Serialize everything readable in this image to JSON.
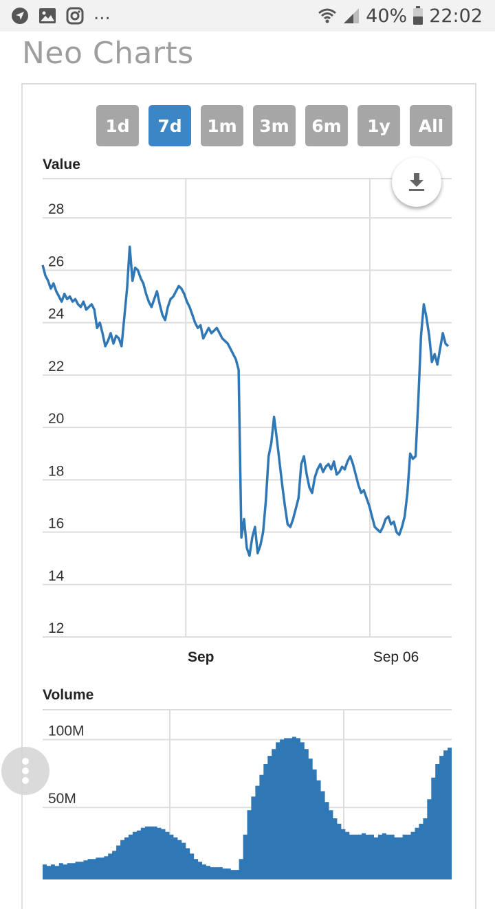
{
  "status_bar": {
    "notification_icons": [
      "navigation-icon",
      "gallery-icon",
      "instagram-icon"
    ],
    "more": "...",
    "battery": "40%",
    "time": "22:02"
  },
  "app": {
    "title": "Neo Charts"
  },
  "range_buttons": [
    {
      "label": "1d",
      "active": false
    },
    {
      "label": "7d",
      "active": true
    },
    {
      "label": "1m",
      "active": false
    },
    {
      "label": "3m",
      "active": false
    },
    {
      "label": "6m",
      "active": false
    },
    {
      "label": "1y",
      "active": false
    },
    {
      "label": "All",
      "active": false
    }
  ],
  "colors": {
    "accent": "#3d86c6",
    "button": "#a6a6a6",
    "line": "#2f77b5",
    "grid": "#dddddd"
  },
  "chart_data": [
    {
      "type": "line",
      "title": "Value",
      "ylim": [
        12,
        29.5
      ],
      "yticks": [
        "12",
        "14",
        "16",
        "18",
        "20",
        "22",
        "24",
        "26",
        "28"
      ],
      "xlim": [
        0,
        160
      ],
      "xticks": [
        {
          "label": "Sep",
          "x": 56,
          "bold": true
        },
        {
          "label": "Sep 06",
          "x": 128,
          "bold": false
        }
      ],
      "grid": true,
      "values": [
        26.2,
        25.8,
        25.6,
        25.3,
        25.5,
        25.2,
        25.0,
        24.8,
        25.1,
        24.9,
        25.0,
        24.8,
        24.9,
        24.7,
        24.6,
        24.8,
        24.5,
        24.6,
        24.7,
        24.5,
        23.8,
        24.0,
        23.6,
        23.1,
        23.3,
        23.6,
        23.2,
        23.5,
        23.4,
        23.1,
        24.2,
        25.3,
        26.9,
        25.6,
        26.1,
        26.0,
        25.7,
        25.5,
        25.1,
        24.8,
        24.6,
        24.9,
        25.2,
        24.7,
        24.3,
        24.1,
        24.6,
        24.9,
        25.0,
        25.2,
        25.4,
        25.3,
        25.1,
        24.8,
        24.6,
        24.3,
        24.0,
        23.8,
        23.9,
        23.4,
        23.6,
        23.8,
        23.6,
        23.7,
        23.8,
        23.6,
        23.4,
        23.3,
        23.2,
        23.0,
        22.8,
        22.6,
        22.2,
        15.8,
        16.5,
        15.4,
        15.1,
        15.8,
        16.2,
        15.2,
        15.5,
        16.0,
        17.2,
        18.9,
        19.4,
        20.4,
        19.6,
        18.7,
        17.8,
        17.0,
        16.3,
        16.2,
        16.5,
        16.9,
        17.3,
        18.6,
        18.9,
        18.2,
        17.7,
        17.5,
        18.1,
        18.4,
        18.6,
        18.3,
        18.5,
        18.6,
        18.4,
        18.7,
        18.2,
        18.3,
        18.5,
        18.4,
        18.7,
        18.9,
        18.6,
        18.2,
        17.8,
        17.5,
        17.6,
        17.3,
        17.0,
        16.6,
        16.2,
        16.1,
        16.0,
        16.2,
        16.5,
        16.6,
        16.3,
        16.4,
        16.0,
        15.9,
        16.2,
        16.6,
        17.5,
        19.0,
        18.8,
        18.9,
        21.0,
        23.5,
        24.7,
        24.2,
        23.5,
        22.5,
        22.8,
        22.4,
        23.0,
        23.6,
        23.2,
        23.1
      ],
      "min_value": 14.0,
      "max_value": 27.4
    },
    {
      "type": "area",
      "title": "Volume",
      "ylim": [
        0,
        125
      ],
      "yticks": [
        "50M",
        "100M"
      ],
      "grid": true,
      "values": [
        8,
        7,
        8,
        7,
        9,
        8,
        9,
        9,
        10,
        10,
        11,
        12,
        12,
        13,
        13,
        14,
        16,
        18,
        22,
        26,
        28,
        30,
        32,
        33,
        35,
        36,
        36,
        36,
        35,
        34,
        32,
        30,
        28,
        26,
        24,
        20,
        16,
        12,
        10,
        8,
        7,
        6,
        6,
        6,
        5,
        5,
        4,
        4,
        12,
        30,
        48,
        58,
        66,
        74,
        82,
        88,
        93,
        98,
        100,
        101,
        101,
        102,
        101,
        98,
        93,
        86,
        78,
        70,
        62,
        54,
        48,
        42,
        38,
        34,
        32,
        30,
        30,
        30,
        31,
        30,
        30,
        28,
        30,
        31,
        30,
        30,
        28,
        28,
        30,
        30,
        32,
        35,
        38,
        42,
        56,
        72,
        82,
        88,
        92,
        94
      ]
    }
  ]
}
